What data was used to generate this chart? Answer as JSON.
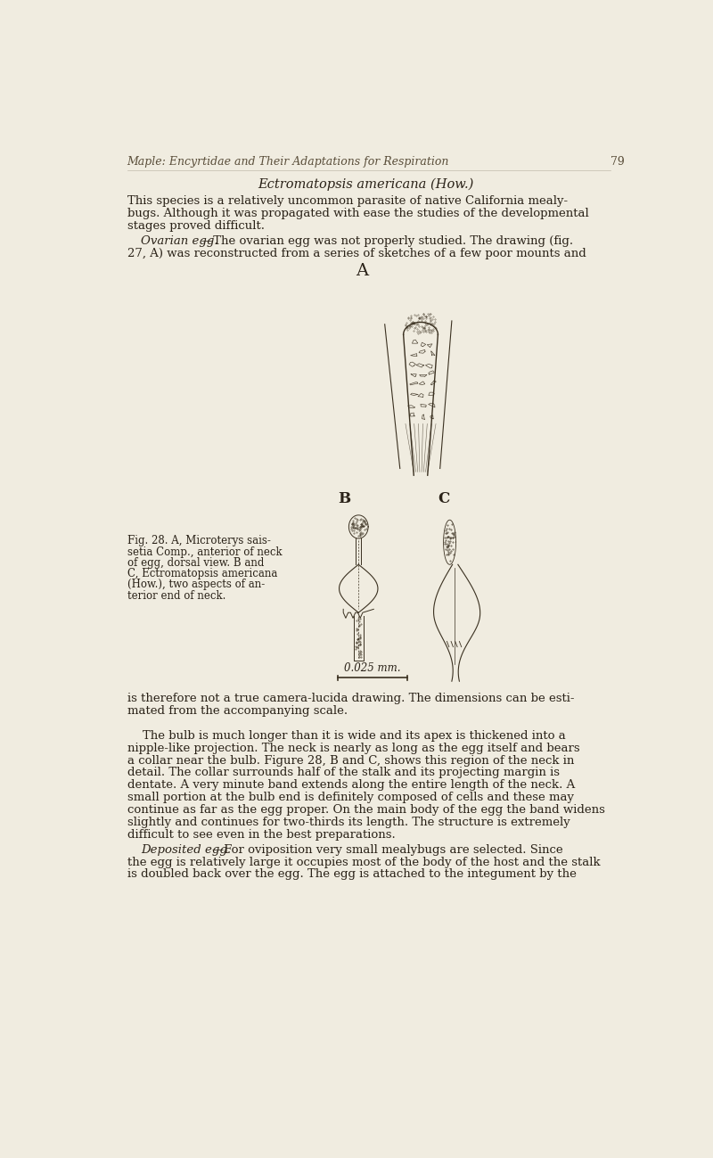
{
  "bg_color": "#f0ece0",
  "page_width": 8.0,
  "page_height": 12.99,
  "header_text": "Maple: Encyrtidae and Their Adaptations for Respiration",
  "header_page": "79",
  "title_text": "Ectromatopsis americana (How.)",
  "fig_label_A": "A",
  "fig_label_B": "B",
  "fig_label_C": "C",
  "fig_caption": "Fig. 28. A, Microterys sais-\nsetia Comp., anterior of neck\nof egg, dorsal view. B and\nC, Ectromatopsis americana\n(How.), two aspects of an-\nterior end of neck.",
  "scale_label": "0.025 mm.",
  "text_color": "#2a2218",
  "ink_color": "#3a3020"
}
